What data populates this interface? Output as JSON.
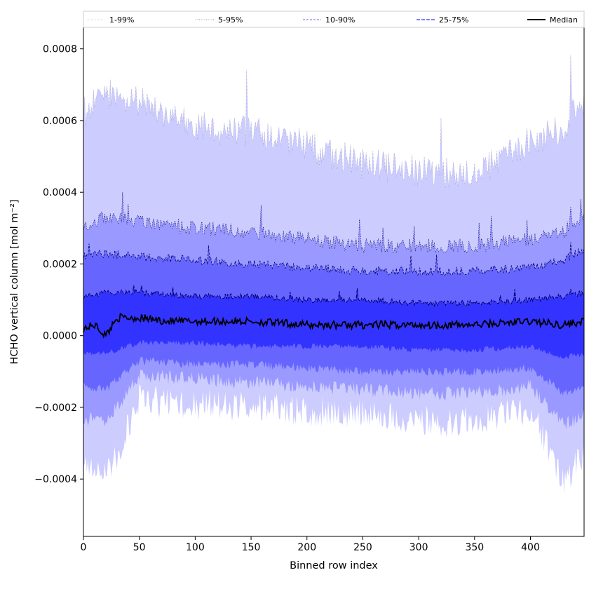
{
  "chart_data": {
    "type": "area",
    "xlabel": "Binned row index",
    "ylabel": "HCHO vertical column [mol m⁻²]",
    "xlim": [
      0,
      448
    ],
    "ylim": [
      -0.00056,
      0.00086
    ],
    "x_ticks": [
      0,
      50,
      100,
      150,
      200,
      250,
      300,
      350,
      400
    ],
    "y_ticks": [
      -0.0004,
      -0.0002,
      0.0,
      0.0002,
      0.0004,
      0.0006,
      0.0008
    ],
    "y_tick_labels": [
      "−0.0004",
      "−0.0002",
      "0.0000",
      "0.0002",
      "0.0004",
      "0.0006",
      "0.0008"
    ],
    "legend_placement": "top (above axes, horizontal)",
    "series": [
      {
        "name": "1-99%",
        "color": "#ccccff",
        "x": [
          0,
          20,
          50,
          100,
          150,
          200,
          250,
          300,
          350,
          400,
          430,
          448
        ],
        "lower": [
          -0.00035,
          -0.0004,
          -0.00018,
          -0.00019,
          -0.0002,
          -0.00021,
          -0.00022,
          -0.00024,
          -0.00024,
          -0.00021,
          -0.0004,
          -0.00034
        ],
        "upper": [
          0.00062,
          0.00068,
          0.00065,
          0.00058,
          0.00057,
          0.00053,
          0.00048,
          0.00046,
          0.00045,
          0.00054,
          0.00058,
          0.00066
        ]
      },
      {
        "name": "5-95%",
        "color": "#9999ff",
        "x": [
          0,
          20,
          50,
          100,
          150,
          200,
          250,
          300,
          350,
          400,
          430,
          448
        ],
        "lower": [
          -0.00023,
          -0.00024,
          -0.00011,
          -0.00012,
          -0.00013,
          -0.00014,
          -0.00015,
          -0.00016,
          -0.00016,
          -0.00014,
          -0.00025,
          -0.00022
        ],
        "upper": [
          0.00031,
          0.00033,
          0.00032,
          0.0003,
          0.00029,
          0.00027,
          0.00025,
          0.00025,
          0.00025,
          0.00027,
          0.00029,
          0.00034
        ]
      },
      {
        "name": "10-90%",
        "color": "#6666ff",
        "x": [
          0,
          20,
          50,
          100,
          150,
          200,
          250,
          300,
          350,
          400,
          430,
          448
        ],
        "lower": [
          -0.00014,
          -0.00015,
          -7e-05,
          -8e-05,
          -8e-05,
          -9e-05,
          -0.0001,
          -0.0001,
          -0.0001,
          -9e-05,
          -0.00016,
          -0.00014
        ],
        "upper": [
          0.00022,
          0.00023,
          0.00022,
          0.00021,
          0.0002,
          0.00019,
          0.00018,
          0.00018,
          0.00018,
          0.00019,
          0.00021,
          0.00024
        ]
      },
      {
        "name": "25-75%",
        "color": "#3333ff",
        "x": [
          0,
          20,
          50,
          100,
          150,
          200,
          250,
          300,
          350,
          400,
          430,
          448
        ],
        "lower": [
          -5e-05,
          -5e-05,
          -2e-05,
          -2e-05,
          -3e-05,
          -3e-05,
          -3e-05,
          -4e-05,
          -4e-05,
          -3e-05,
          -6e-05,
          -5e-05
        ],
        "upper": [
          0.00011,
          0.00012,
          0.00012,
          0.00011,
          0.00011,
          0.0001,
          0.0001,
          9e-05,
          9e-05,
          0.0001,
          0.00011,
          0.00012
        ]
      },
      {
        "name": "Median",
        "color": "#000000",
        "x": [
          0,
          10,
          20,
          30,
          50,
          75,
          100,
          150,
          200,
          250,
          300,
          350,
          400,
          430,
          448
        ],
        "values": [
          2e-05,
          3e-05,
          0.0,
          5e-05,
          5e-05,
          4e-05,
          4e-05,
          4e-05,
          3e-05,
          3e-05,
          3e-05,
          3e-05,
          4e-05,
          3e-05,
          4e-05
        ]
      }
    ]
  }
}
